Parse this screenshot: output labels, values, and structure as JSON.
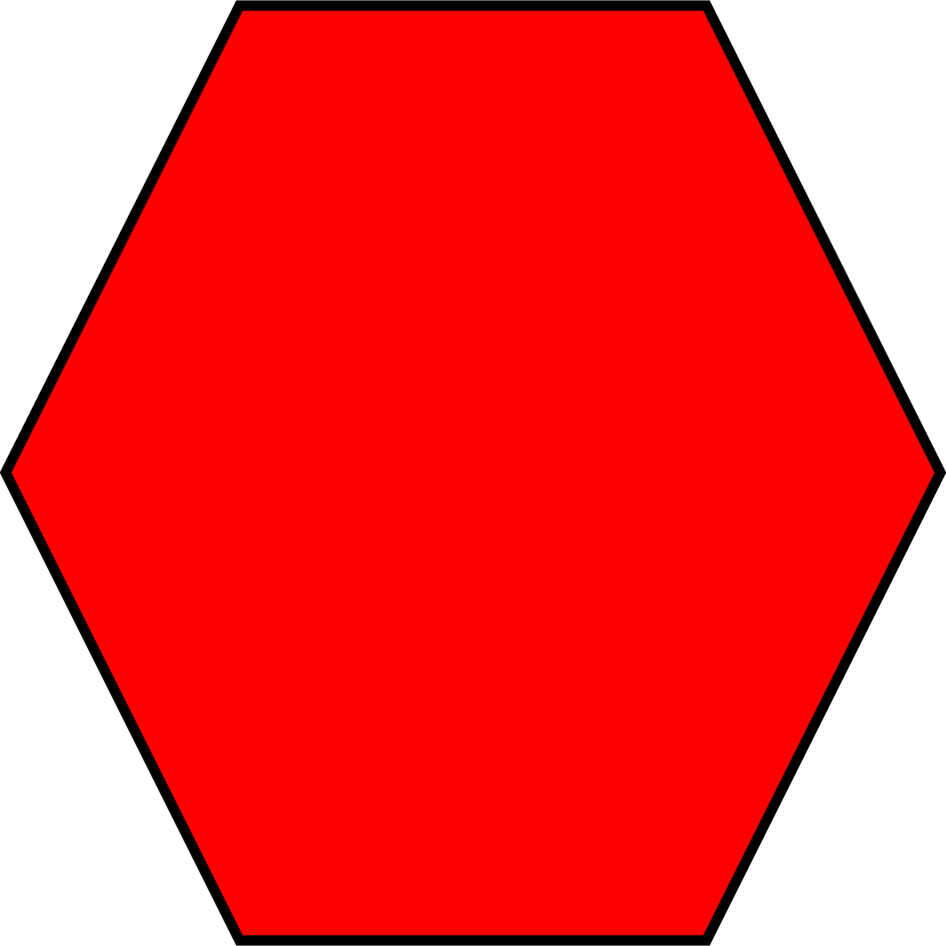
{
  "shape": {
    "kind": "hexagon",
    "sides": 6,
    "fill_color": "#ff0000",
    "stroke_color": "#000000"
  }
}
